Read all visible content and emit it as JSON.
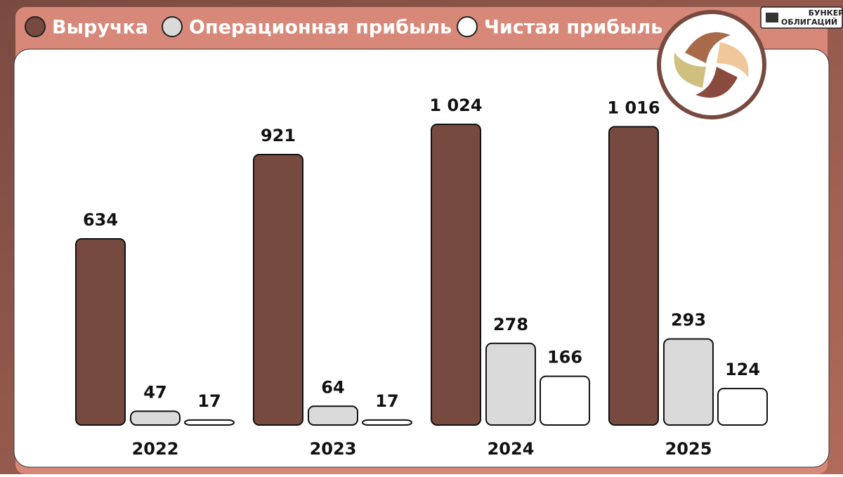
{
  "brand": {
    "line1": "БУНКЕР",
    "line2": "ОБЛИГАЦИЙ"
  },
  "chart_data": {
    "type": "bar",
    "categories": [
      "2022",
      "2023",
      "2024",
      "2025"
    ],
    "series": [
      {
        "name": "Выручка",
        "color": "#774a40",
        "values": [
          634,
          921,
          1024,
          1016
        ],
        "value_labels": [
          "634",
          "921",
          "1 024",
          "1 016"
        ]
      },
      {
        "name": "Операционная прибыль",
        "color": "#dadada",
        "values": [
          47,
          64,
          278,
          293
        ]
      },
      {
        "name": "Чистая прибыль",
        "color": "#ffffff",
        "values": [
          17,
          17,
          166,
          124
        ]
      }
    ]
  }
}
